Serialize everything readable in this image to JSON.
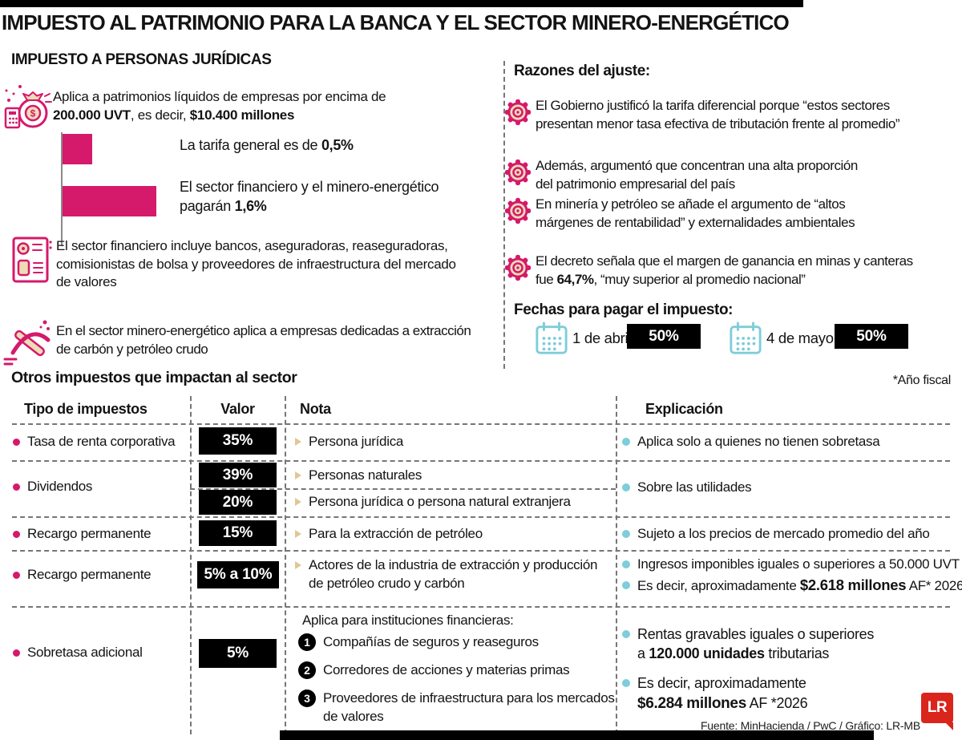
{
  "title": "IMPUESTO AL PATRIMONIO PARA LA BANCA Y EL SECTOR MINERO-ENERGÉTICO",
  "colors": {
    "accent_pink": "#d5196b",
    "icon_cream": "#eedcb7",
    "light_blue": "#7ecdd8",
    "badge_black": "#000000",
    "logo_red": "#da251c"
  },
  "left": {
    "section_title": "IMPUESTO A PERSONAS JURÍDICAS",
    "intro": {
      "l1": "Aplica a patrimonios líquidos de empresas por encima de",
      "b1": "200.000 UVT",
      "t2": ", es decir, ",
      "b2": "$10.400 millones"
    },
    "financial_note_lines": [
      "El sector financiero incluye bancos, aseguradoras, reaseguradoras,",
      "comisionistas de bolsa y proveedores de infraestructura del mercado",
      "de valores"
    ],
    "mining_note_lines": [
      "En el sector minero-energético aplica a empresas dedicadas a extracción",
      "de carbón y petróleo crudo"
    ]
  },
  "chart_data": {
    "type": "bar",
    "orientation": "horizontal",
    "categories": [
      "Tarifa general",
      "Sector financiero y minero-energético"
    ],
    "values": [
      0.5,
      1.6
    ],
    "unit": "%",
    "bar_color": "#d5196b",
    "grid": false,
    "labels": {
      "general": {
        "pre": "La tarifa general es de ",
        "bold": "0,5%"
      },
      "sector": {
        "l1": "El sector financiero y el minero-energético",
        "l2pre": "pagarán ",
        "l2bold": "1,6%"
      }
    }
  },
  "reasons": {
    "title": "Razones del ajuste:",
    "items": [
      {
        "l1": "El Gobierno justificó la tarifa diferencial porque “estos sectores",
        "l2": "presentan menor tasa efectiva de tributación frente al promedio”"
      },
      {
        "l1": "Además, argumentó que concentran una alta proporción",
        "l2": "del patrimonio empresarial del país"
      },
      {
        "l1": "En minería y petróleo se añade el argumento de “altos",
        "l2": "márgenes de rentabilidad” y externalidades ambientales"
      },
      {
        "l1": "El decreto señala que el margen de ganancia en minas y canteras",
        "l2pre": "fue ",
        "l2bold": "64,7%",
        "l2post": ", “muy superior al promedio nacional”"
      }
    ]
  },
  "dates": {
    "title": "Fechas para pagar el impuesto:",
    "items": [
      {
        "date": "1 de abril",
        "pct": "50%"
      },
      {
        "date": "4 de mayo",
        "pct": "50%"
      }
    ]
  },
  "table": {
    "title": "Otros impuestos que impactan al sector",
    "fiscal_note": "*Año fiscal",
    "headers": [
      "Tipo de impuestos",
      "Valor",
      "Nota",
      "Explicación"
    ],
    "row1": {
      "label": "Tasa de renta corporativa",
      "value": "35%",
      "nota": "Persona jurídica",
      "expl": "Aplica solo a quienes no tienen sobretasa"
    },
    "row2": {
      "label": "Dividendos",
      "value_a": "39%",
      "value_b": "20%",
      "nota_a": "Personas naturales",
      "nota_b": "Persona jurídica o persona natural extranjera",
      "expl": "Sobre las utilidades"
    },
    "row3": {
      "label": "Recargo permanente",
      "value": "15%",
      "nota": "Para la extracción de petróleo",
      "expl": "Sujeto a los precios de mercado promedio del año"
    },
    "row4": {
      "label": "Recargo permanente",
      "value": "5% a 10%",
      "nota_l1": "Actores de la industria de extracción y producción",
      "nota_l2": "de petróleo crudo y carbón",
      "expl1": "Ingresos imponibles iguales o superiores a 50.000 UVT",
      "expl2pre": "Es decir, aproximadamente ",
      "expl2bold": "$2.618 millones",
      "expl2post": " AF* 2026"
    },
    "row5": {
      "label": "Sobretasa adicional",
      "value": "5%",
      "nota_title": "Aplica para instituciones financieras:",
      "nota_items": [
        {
          "n": "1",
          "text": "Compañías de seguros y reaseguros"
        },
        {
          "n": "2",
          "text": "Corredores de acciones y materias primas"
        },
        {
          "n": "3",
          "l1": "Proveedores de infraestructura para los mercados",
          "l2": "de valores"
        }
      ],
      "expl1_l1": "Rentas gravables iguales o superiores",
      "expl1_l2pre": "a ",
      "expl1_l2bold": "120.000 unidades",
      "expl1_l2post": " tributarias",
      "expl2_l1": "Es decir, aproximadamente",
      "expl2_l2bold": "$6.284 millones",
      "expl2_l2post": " AF *2026"
    }
  },
  "footer": {
    "source": "Fuente: MinHacienda / PwC / Gráfico: LR-MB",
    "logo_text": "LR"
  }
}
